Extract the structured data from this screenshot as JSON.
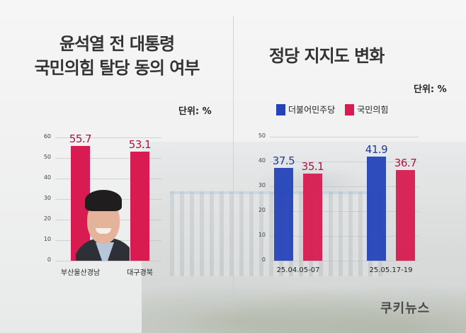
{
  "left_panel": {
    "title_line1": "윤석열 전 대통령",
    "title_line2": "국민의힘 탈당 동의 여부",
    "unit": "단위: %"
  },
  "right_panel": {
    "title": "정당 지지도 변화",
    "unit": "단위: %",
    "legend": [
      {
        "label": "더불어민주당",
        "color": "#2443b8"
      },
      {
        "label": "국민의힘",
        "color": "#d81b50"
      }
    ]
  },
  "brand": "쿠키뉴스",
  "chart_data": [
    {
      "type": "bar",
      "title": "윤석열 전 대통령 국민의힘 탈당 동의 여부",
      "unit": "%",
      "categories": [
        "부산울산경남",
        "대구경북"
      ],
      "values": [
        55.7,
        53.1
      ],
      "value_labels": [
        "55.7",
        "53.1"
      ],
      "color": "#d81b50",
      "yticks": [
        "0",
        "10",
        "20",
        "30",
        "40",
        "50",
        "60"
      ],
      "ylim": [
        0,
        60
      ],
      "grid": true,
      "xlabel": "",
      "ylabel": ""
    },
    {
      "type": "bar",
      "title": "정당 지지도 변화",
      "unit": "%",
      "categories": [
        "25.04.05-07",
        "25.05.17-19"
      ],
      "series": [
        {
          "name": "더불어민주당",
          "values": [
            37.5,
            41.9
          ],
          "value_labels": [
            "37.5",
            "41.9"
          ],
          "color": "#2443b8"
        },
        {
          "name": "국민의힘",
          "values": [
            35.1,
            36.7
          ],
          "value_labels": [
            "35.1",
            "36.7"
          ],
          "color": "#d81b50"
        }
      ],
      "yticks": [
        "0",
        "10",
        "20",
        "30",
        "40",
        "50"
      ],
      "ylim": [
        0,
        50
      ],
      "grid": true,
      "legend_position": "top",
      "xlabel": "",
      "ylabel": ""
    }
  ]
}
